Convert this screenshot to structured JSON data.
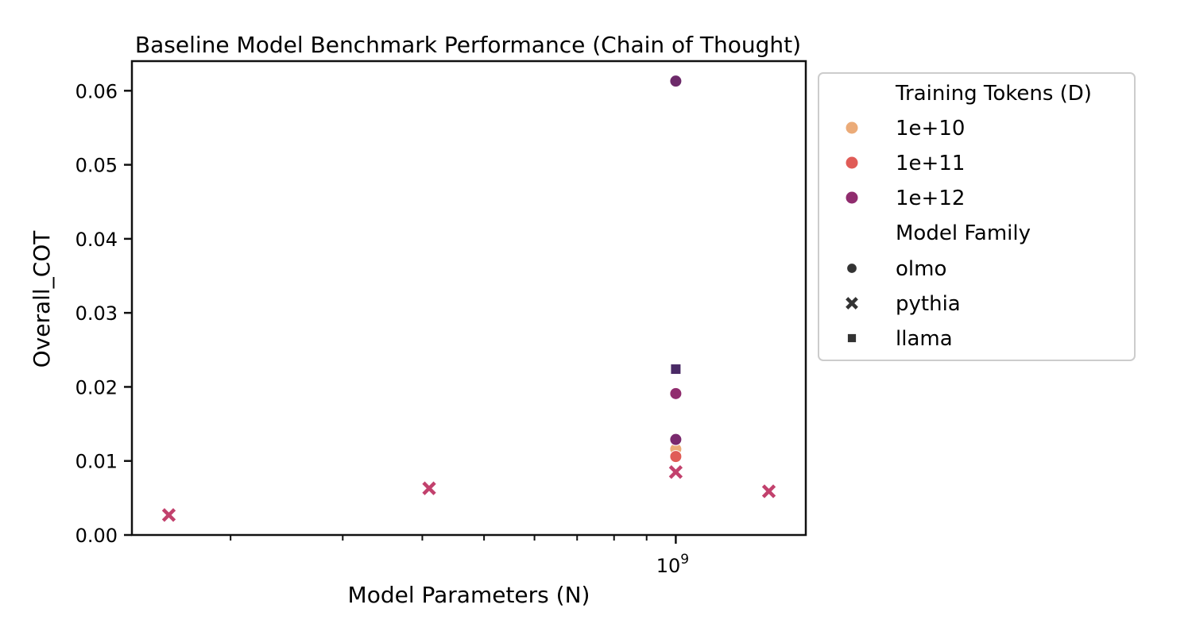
{
  "chart_data": {
    "type": "scatter",
    "title": "Baseline Model Benchmark Performance (Chain of Thought)",
    "xlabel": "Model Parameters (N)",
    "ylabel": "Overall_COT",
    "x_scale": "log",
    "xlim": [
      140000000,
      1600000000
    ],
    "ylim": [
      0,
      0.064
    ],
    "y_ticks": [
      0.0,
      0.01,
      0.02,
      0.03,
      0.04,
      0.05,
      0.06
    ],
    "y_tick_labels": [
      "0.00",
      "0.01",
      "0.02",
      "0.03",
      "0.04",
      "0.05",
      "0.06"
    ],
    "x_major_ticks": [
      1000000000
    ],
    "x_major_tick_labels": [
      "10",
      "9"
    ],
    "x_minor_ticks": [
      200000000,
      300000000,
      400000000,
      500000000,
      600000000,
      700000000,
      800000000,
      900000000
    ],
    "grid": false,
    "legend_position": "outside-right",
    "legend": {
      "hue_title": "Training Tokens (D)",
      "hue_entries": [
        {
          "label": "1e+10",
          "color": "#ebab78"
        },
        {
          "label": "1e+11",
          "color": "#e05c57"
        },
        {
          "label": "1e+12",
          "color": "#902c6e"
        }
      ],
      "style_title": "Model Family",
      "style_entries": [
        {
          "label": " olmo",
          "marker": "circle"
        },
        {
          "label": " pythia",
          "marker": "x"
        },
        {
          "label": " llama",
          "marker": "square"
        }
      ]
    },
    "points": [
      {
        "x": 160000000,
        "y": 0.0027,
        "family": "pythia",
        "color": "#c2416d"
      },
      {
        "x": 410000000,
        "y": 0.0063,
        "family": "pythia",
        "color": "#c2416d"
      },
      {
        "x": 1000000000,
        "y": 0.0085,
        "family": "pythia",
        "color": "#c2416d"
      },
      {
        "x": 1400000000,
        "y": 0.0059,
        "family": "pythia",
        "color": "#c2416d"
      },
      {
        "x": 1000000000,
        "y": 0.0116,
        "family": "olmo",
        "color": "#ebab78"
      },
      {
        "x": 1000000000,
        "y": 0.0106,
        "family": "olmo",
        "color": "#e05c57"
      },
      {
        "x": 1000000000,
        "y": 0.0129,
        "family": "olmo",
        "color": "#7a2a6e"
      },
      {
        "x": 1000000000,
        "y": 0.0191,
        "family": "olmo",
        "color": "#902c6e"
      },
      {
        "x": 1000000000,
        "y": 0.0613,
        "family": "olmo",
        "color": "#6d2a6a"
      },
      {
        "x": 1000000000,
        "y": 0.0224,
        "family": "llama",
        "color": "#4a2a66"
      }
    ]
  }
}
